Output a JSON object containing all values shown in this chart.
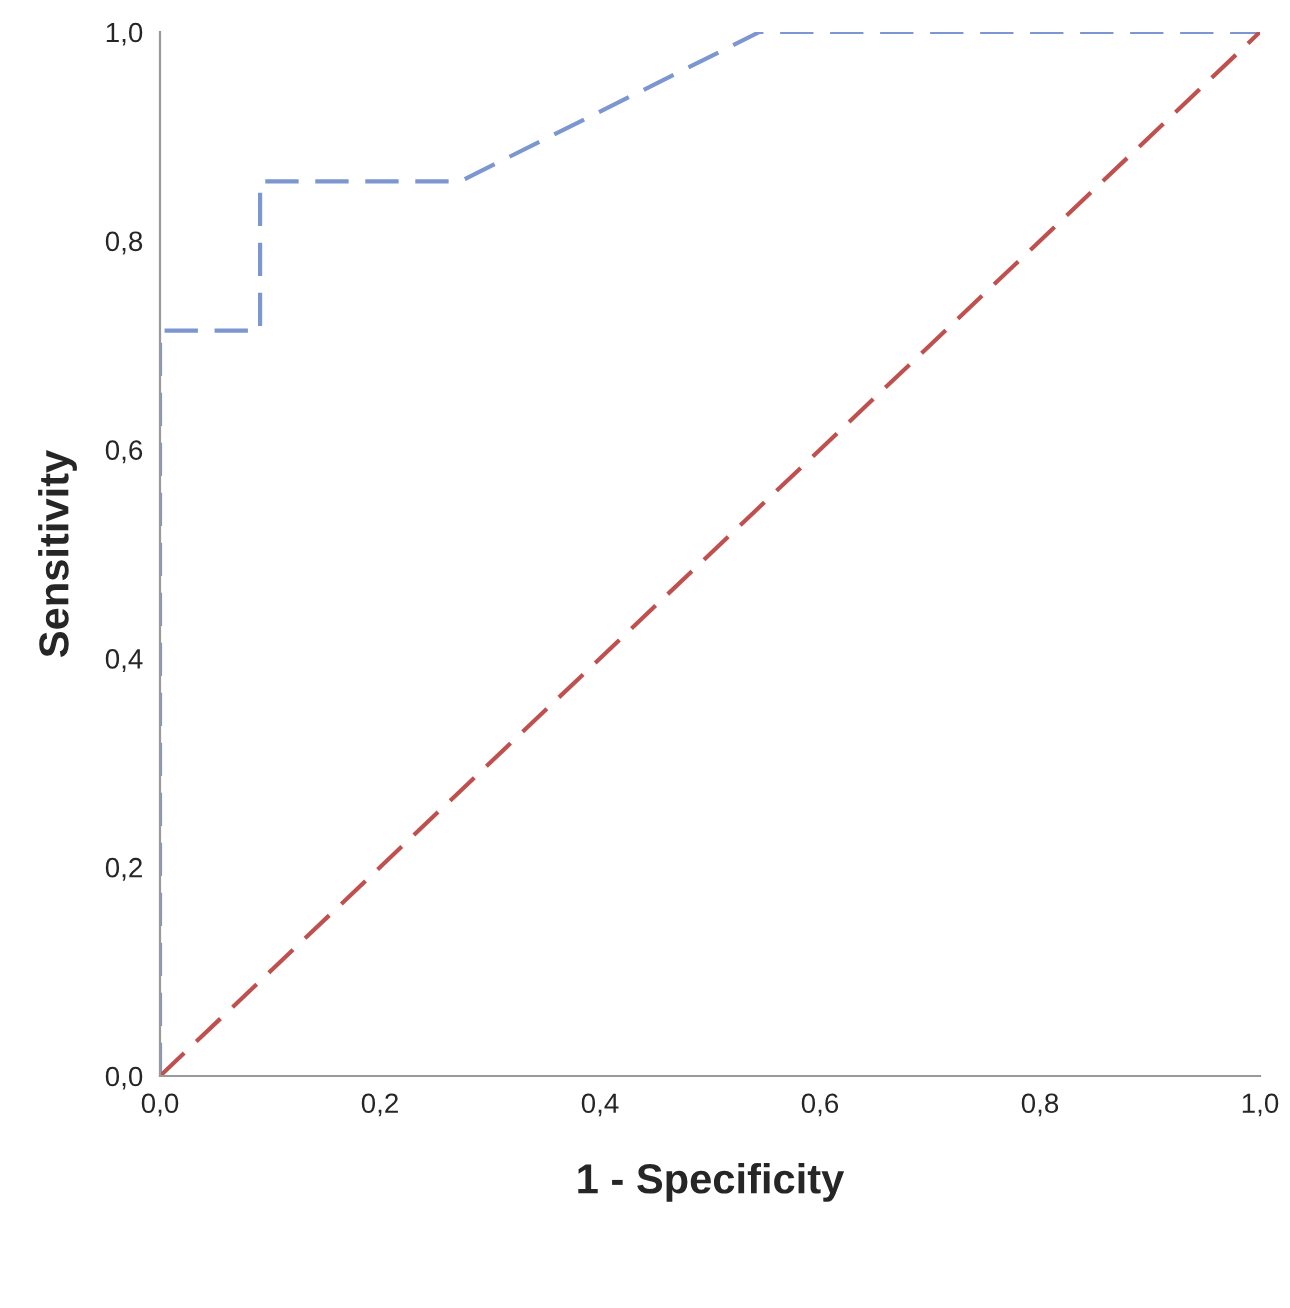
{
  "chart_data": {
    "type": "line",
    "xlabel": "1 - Specificity",
    "ylabel": "Sensitivity",
    "series": [
      {
        "x": [
          0,
          0,
          0.091,
          0.091,
          0.273,
          0.545,
          1.0
        ],
        "values": [
          0,
          0.714,
          0.714,
          0.857,
          0.857,
          1.0,
          1.0
        ],
        "color": "#7b96d0",
        "line_style": "dashed"
      },
      {
        "x": [
          0,
          1.0
        ],
        "values": [
          0,
          1.0
        ],
        "color": "#c0504d",
        "line_style": "dashed"
      }
    ],
    "xlim": [
      0,
      1.0
    ],
    "ylim": [
      0,
      1.0
    ],
    "xticks": [
      {
        "value": 0,
        "label": "0,0"
      },
      {
        "value": 0.2,
        "label": "0,2"
      },
      {
        "value": 0.4,
        "label": "0,4"
      },
      {
        "value": 0.6,
        "label": "0,6"
      },
      {
        "value": 0.8,
        "label": "0,8"
      },
      {
        "value": 1.0,
        "label": "1,0"
      }
    ],
    "yticks": [
      {
        "value": 0,
        "label": "0,0"
      },
      {
        "value": 0.2,
        "label": "0,2"
      },
      {
        "value": 0.4,
        "label": "0,4"
      },
      {
        "value": 0.6,
        "label": "0,6"
      },
      {
        "value": 0.8,
        "label": "0,8"
      },
      {
        "value": 1.0,
        "label": "1,0"
      }
    ],
    "grid": false,
    "legend": false,
    "marker": "none"
  }
}
